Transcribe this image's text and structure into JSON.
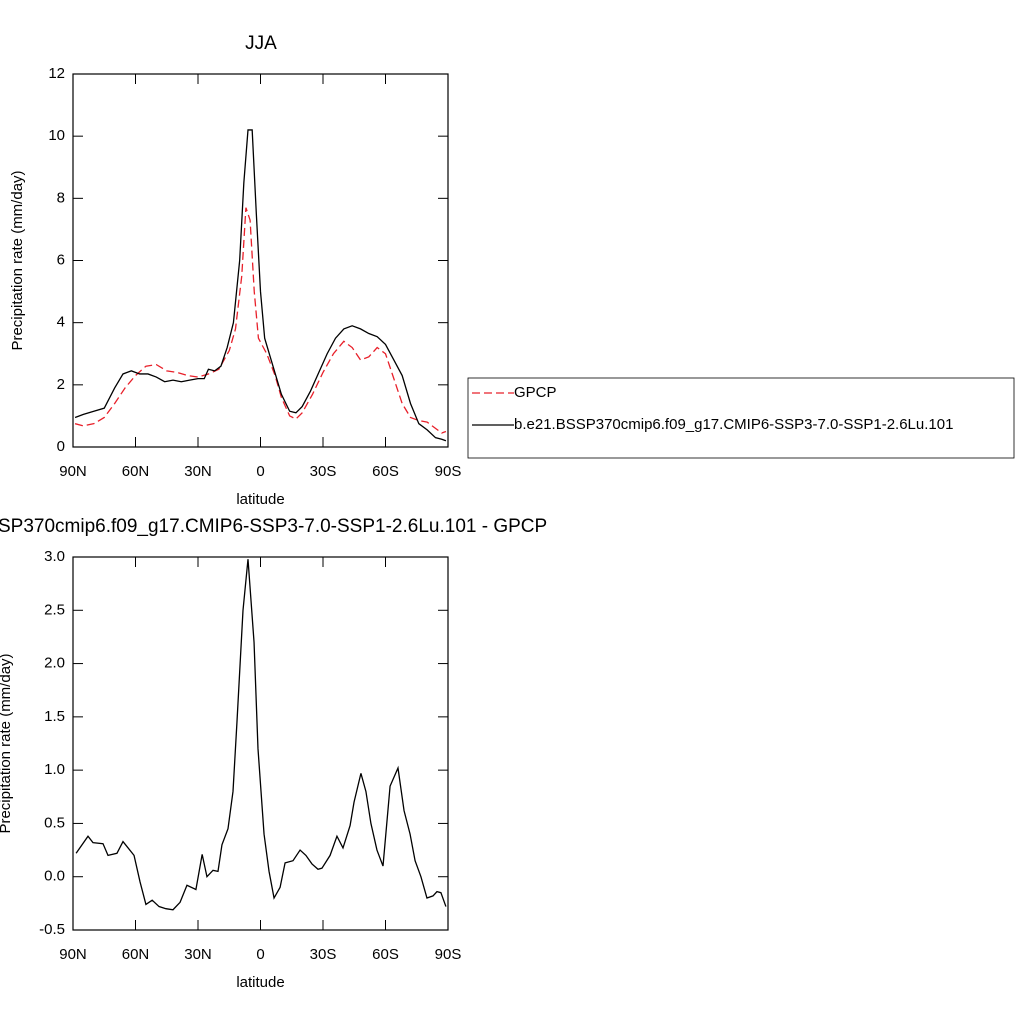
{
  "chart_data": [
    {
      "type": "line",
      "title": "JJA",
      "xlabel": "latitude",
      "ylabel": "Precipitation rate (mm/day)",
      "xlim": [
        90,
        -90
      ],
      "ylim": [
        0,
        12
      ],
      "xticks": [
        {
          "value": 90,
          "label": "90N"
        },
        {
          "value": 60,
          "label": "60N"
        },
        {
          "value": 30,
          "label": "30N"
        },
        0,
        {
          "value": -30,
          "label": "30S"
        },
        {
          "value": -60,
          "label": "60S"
        },
        {
          "value": -90,
          "label": "90S"
        }
      ],
      "yticks": [
        0,
        2,
        4,
        6,
        8,
        10,
        12
      ],
      "legend": "right",
      "series": [
        {
          "name": "GPCP",
          "color": "#e8202a",
          "dash": "dashed",
          "x": [
            89,
            85,
            80,
            75,
            70,
            65,
            60,
            55,
            50,
            45,
            40,
            35,
            30,
            25,
            20,
            15,
            12,
            9,
            7,
            5,
            3,
            1,
            -3,
            -7,
            -10,
            -14,
            -17,
            -20,
            -25,
            -30,
            -35,
            -40,
            -44,
            -48,
            -52,
            -56,
            -60,
            -64,
            -68,
            -72,
            -76,
            -80,
            -84,
            -87,
            -89
          ],
          "values": [
            0.75,
            0.68,
            0.75,
            0.95,
            1.4,
            1.9,
            2.3,
            2.6,
            2.65,
            2.45,
            2.4,
            2.3,
            2.25,
            2.35,
            2.5,
            3.1,
            3.8,
            5.5,
            7.7,
            7.3,
            5.0,
            3.5,
            3.0,
            2.3,
            1.6,
            1.0,
            0.9,
            1.1,
            1.7,
            2.4,
            3.0,
            3.4,
            3.2,
            2.8,
            2.9,
            3.2,
            3.0,
            2.2,
            1.4,
            0.95,
            0.85,
            0.8,
            0.6,
            0.45,
            0.5
          ]
        },
        {
          "name": "b.e21.BSSP370cmip6.f09_g17.CMIP6-SSP3-7.0-SSP1-2.6Lu.101",
          "color": "#000000",
          "dash": "solid",
          "x": [
            89,
            85,
            80,
            75,
            70,
            66,
            62,
            58,
            54,
            50,
            46,
            42,
            38,
            34,
            30,
            27,
            25,
            22,
            19,
            16,
            13,
            10,
            8,
            6,
            4,
            2,
            0,
            -2,
            -6,
            -10,
            -14,
            -17,
            -20,
            -24,
            -28,
            -32,
            -36,
            -40,
            -44,
            -48,
            -52,
            -56,
            -60,
            -64,
            -68,
            -72,
            -76,
            -80,
            -84,
            -87,
            -89
          ],
          "values": [
            0.95,
            1.05,
            1.15,
            1.25,
            1.9,
            2.35,
            2.45,
            2.35,
            2.35,
            2.25,
            2.1,
            2.15,
            2.1,
            2.15,
            2.2,
            2.2,
            2.5,
            2.45,
            2.6,
            3.2,
            4.0,
            6.0,
            8.5,
            10.2,
            10.2,
            7.5,
            5.0,
            3.5,
            2.6,
            1.7,
            1.15,
            1.1,
            1.3,
            1.8,
            2.4,
            3.0,
            3.5,
            3.8,
            3.9,
            3.8,
            3.65,
            3.55,
            3.3,
            2.8,
            2.3,
            1.4,
            0.75,
            0.55,
            0.3,
            0.25,
            0.2
          ]
        }
      ]
    },
    {
      "type": "line",
      "title": "SP370cmip6.f09_g17.CMIP6-SSP3-7.0-SSP1-2.6Lu.101 - GPCP",
      "xlabel": "latitude",
      "ylabel": "Precipitation rate (mm/day)",
      "xlim": [
        90,
        -90
      ],
      "ylim": [
        -0.5,
        3.0
      ],
      "xticks": [
        {
          "value": 90,
          "label": "90N"
        },
        {
          "value": 60,
          "label": "60N"
        },
        {
          "value": 30,
          "label": "30N"
        },
        0,
        {
          "value": -30,
          "label": "30S"
        },
        {
          "value": -60,
          "label": "60S"
        },
        {
          "value": -90,
          "label": "90S"
        }
      ],
      "yticks": [
        -0.5,
        {
          "value": 0,
          "label": "0.0"
        },
        0.5,
        {
          "value": 1,
          "label": "1.0"
        },
        1.5,
        {
          "value": 2,
          "label": "2.0"
        },
        2.5,
        {
          "value": 3,
          "label": "3.0"
        }
      ],
      "series": [
        {
          "color": "#000000",
          "dash": "solid",
          "x": [
            88.5,
            82.8,
            80.4,
            75.6,
            73.2,
            68.9,
            66,
            60.7,
            57.8,
            55,
            52,
            48.7,
            45.4,
            42,
            38.6,
            35.3,
            31,
            28,
            25.7,
            22.8,
            20.4,
            18.5,
            15.6,
            13.2,
            11.3,
            8.4,
            6,
            3.1,
            1.2,
            -1.7,
            -4.1,
            -6.5,
            -9.4,
            -11.8,
            -15.6,
            -19,
            -21.8,
            -24.7,
            -27.6,
            -29.5,
            -33.4,
            -36.7,
            -39.6,
            -43,
            -44.9,
            -48.2,
            -50.6,
            -53,
            -55.9,
            -58.8,
            -62.2,
            -66,
            -68.9,
            -71.8,
            -74.2,
            -77,
            -79.9,
            -82.8,
            -84.7,
            -86.6,
            -89
          ],
          "values": [
            0.22,
            0.38,
            0.32,
            0.31,
            0.2,
            0.22,
            0.33,
            0.2,
            -0.05,
            -0.26,
            -0.22,
            -0.28,
            -0.3,
            -0.31,
            -0.24,
            -0.08,
            -0.12,
            0.21,
            0.0,
            0.06,
            0.05,
            0.3,
            0.45,
            0.8,
            1.45,
            2.5,
            2.98,
            2.2,
            1.2,
            0.4,
            0.05,
            -0.2,
            -0.1,
            0.13,
            0.15,
            0.25,
            0.2,
            0.12,
            0.07,
            0.08,
            0.2,
            0.38,
            0.27,
            0.48,
            0.7,
            0.97,
            0.8,
            0.5,
            0.25,
            0.1,
            0.85,
            1.02,
            0.62,
            0.4,
            0.15,
            0.0,
            -0.2,
            -0.18,
            -0.14,
            -0.15,
            -0.28
          ]
        }
      ]
    }
  ]
}
